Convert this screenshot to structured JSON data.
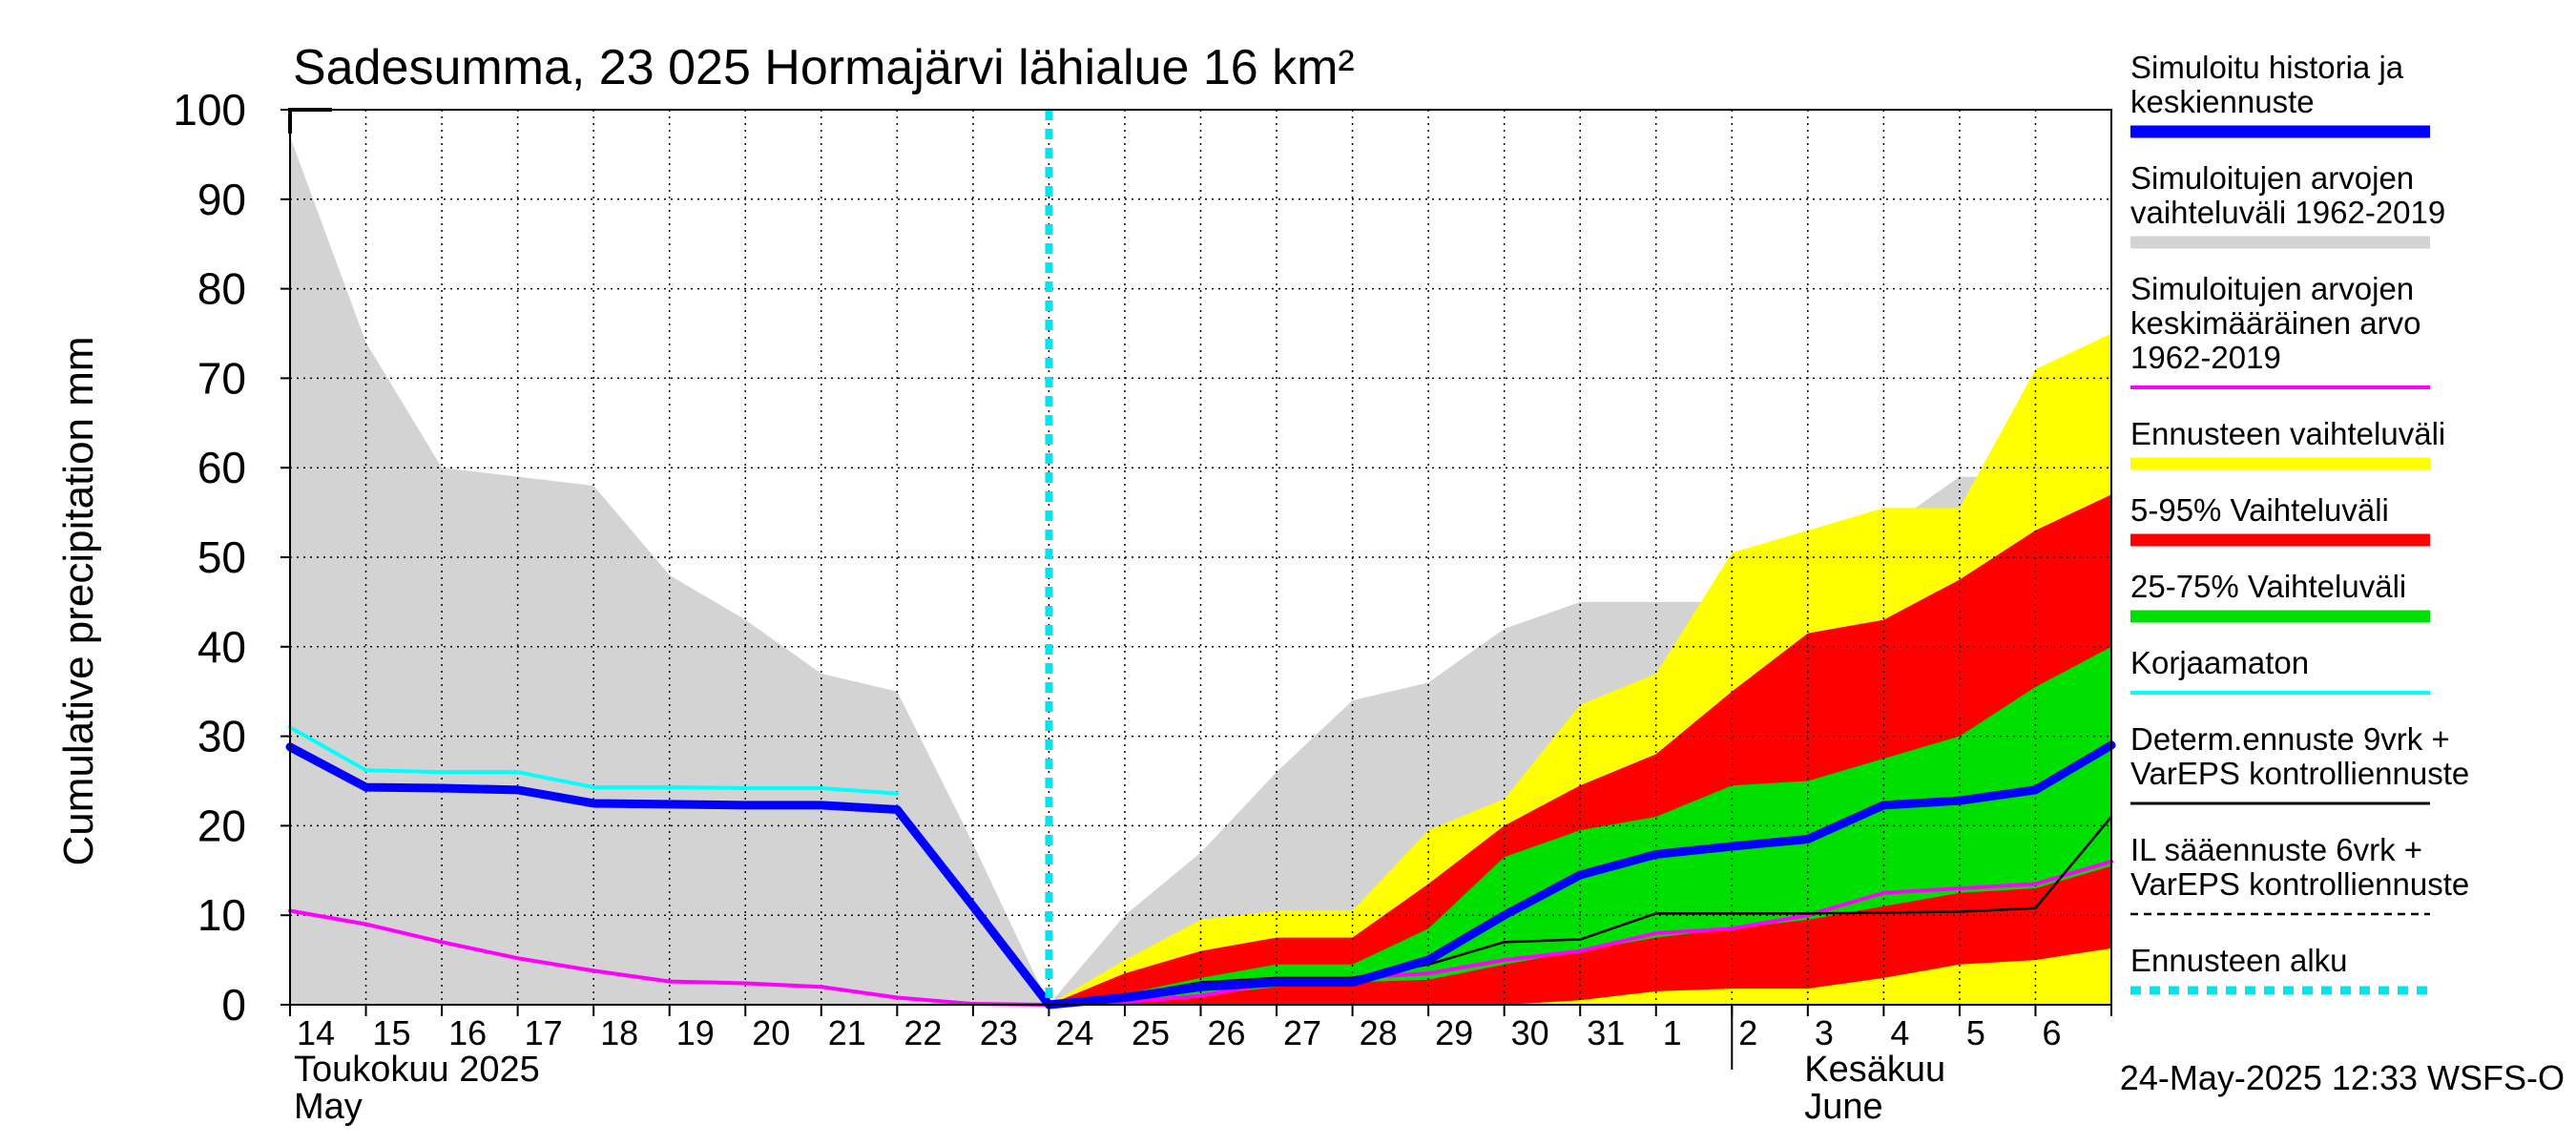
{
  "chart_data": {
    "type": "area",
    "title": "Sadesumma, 23 025 Hormajärvi lähialue 16 km²",
    "ylabel": "Cumulative precipitation   mm",
    "ylim": [
      0,
      100
    ],
    "yticks": [
      0,
      10,
      20,
      30,
      40,
      50,
      60,
      70,
      80,
      90,
      100
    ],
    "x_day_labels": [
      "14",
      "15",
      "16",
      "17",
      "18",
      "19",
      "20",
      "21",
      "22",
      "23",
      "24",
      "25",
      "26",
      "27",
      "28",
      "29",
      "30",
      "31",
      "1",
      "2",
      "3",
      "4",
      "5",
      "6"
    ],
    "month_labels": [
      {
        "fi": "Toukokuu  2025",
        "en": "May",
        "at_day": 0
      },
      {
        "fi": "Kesäkuu",
        "en": "June",
        "at_day": 19
      }
    ],
    "forecast_start_day": 10,
    "series": [
      {
        "name": "Simuloitujen arvojen vaihteluväli 1962-2019",
        "kind": "band",
        "color": "#d3d3d3",
        "upper": [
          [
            0,
            97
          ],
          [
            1,
            74
          ],
          [
            2,
            60
          ],
          [
            3,
            59
          ],
          [
            4,
            58
          ],
          [
            5,
            48
          ],
          [
            6,
            43
          ],
          [
            7,
            37
          ],
          [
            8,
            35
          ],
          [
            9,
            18
          ],
          [
            10,
            0
          ],
          [
            11,
            10
          ],
          [
            12,
            17
          ],
          [
            13,
            26
          ],
          [
            14,
            34
          ],
          [
            15,
            36
          ],
          [
            16,
            42
          ],
          [
            17,
            45
          ],
          [
            18,
            45
          ],
          [
            19,
            45
          ],
          [
            20,
            45
          ],
          [
            21,
            53
          ],
          [
            22,
            59
          ],
          [
            23,
            59
          ],
          [
            24,
            60
          ]
        ],
        "lower": [
          [
            0,
            0
          ],
          [
            24,
            0
          ]
        ]
      },
      {
        "name": "Ennusteen vaihteluväli",
        "kind": "band",
        "color": "#ffff00",
        "upper": [
          [
            10,
            0
          ],
          [
            11,
            5
          ],
          [
            12,
            9.5
          ],
          [
            13,
            10.5
          ],
          [
            14,
            10.5
          ],
          [
            15,
            19.5
          ],
          [
            16,
            23
          ],
          [
            17,
            33.5
          ],
          [
            18,
            37
          ],
          [
            19,
            50.5
          ],
          [
            20,
            53
          ],
          [
            21,
            55.5
          ],
          [
            22,
            55.5
          ],
          [
            23,
            71
          ],
          [
            24,
            75
          ]
        ],
        "lower": [
          [
            10,
            0
          ],
          [
            17,
            0
          ],
          [
            18,
            0
          ],
          [
            24,
            0
          ]
        ]
      },
      {
        "name": "5-95% Vaihteluväli",
        "kind": "band",
        "color": "#ff0000",
        "upper": [
          [
            10,
            0
          ],
          [
            11,
            3.5
          ],
          [
            12,
            6
          ],
          [
            13,
            7.5
          ],
          [
            14,
            7.5
          ],
          [
            15,
            13.5
          ],
          [
            16,
            20
          ],
          [
            17,
            24.5
          ],
          [
            18,
            28
          ],
          [
            19,
            35
          ],
          [
            20,
            41.5
          ],
          [
            21,
            43
          ],
          [
            22,
            47.5
          ],
          [
            23,
            53
          ],
          [
            24,
            57
          ]
        ],
        "lower": [
          [
            10,
            0
          ],
          [
            14,
            0
          ],
          [
            16,
            0
          ],
          [
            17,
            0.5
          ],
          [
            18,
            1.5
          ],
          [
            19,
            1.8
          ],
          [
            20,
            1.8
          ],
          [
            21,
            3
          ],
          [
            22,
            4.5
          ],
          [
            23,
            5
          ],
          [
            24,
            6.3
          ]
        ]
      },
      {
        "name": "25-75% Vaihteluväli",
        "kind": "band",
        "color": "#00e000",
        "upper": [
          [
            10,
            0
          ],
          [
            11,
            1.2
          ],
          [
            12,
            3
          ],
          [
            13,
            4.5
          ],
          [
            14,
            4.5
          ],
          [
            15,
            8.5
          ],
          [
            16,
            16.5
          ],
          [
            17,
            19.5
          ],
          [
            18,
            21
          ],
          [
            19,
            24.5
          ],
          [
            20,
            25
          ],
          [
            21,
            27.5
          ],
          [
            22,
            30
          ],
          [
            23,
            35.5
          ],
          [
            24,
            40
          ]
        ],
        "lower": [
          [
            10,
            0
          ],
          [
            11,
            0.3
          ],
          [
            12,
            1
          ],
          [
            13,
            2
          ],
          [
            14,
            2.5
          ],
          [
            15,
            2.8
          ],
          [
            16,
            4.5
          ],
          [
            17,
            6
          ],
          [
            18,
            7.5
          ],
          [
            19,
            8.5
          ],
          [
            20,
            9.5
          ],
          [
            21,
            11
          ],
          [
            22,
            12.5
          ],
          [
            23,
            13
          ],
          [
            24,
            15.5
          ]
        ]
      },
      {
        "name": "Simuloitujen arvojen keskimääräinen arvo 1962-2019",
        "kind": "line",
        "color": "#ff00ff",
        "width": 4,
        "points": [
          [
            0,
            10.5
          ],
          [
            1,
            9
          ],
          [
            2,
            7
          ],
          [
            3,
            5.2
          ],
          [
            4,
            3.8
          ],
          [
            5,
            2.6
          ],
          [
            6,
            2.4
          ],
          [
            7,
            2
          ],
          [
            8,
            0.8
          ],
          [
            9,
            0.1
          ],
          [
            10,
            0
          ],
          [
            11,
            0.3
          ],
          [
            12,
            1
          ],
          [
            13,
            2.5
          ],
          [
            14,
            3
          ],
          [
            15,
            3.5
          ],
          [
            16,
            5
          ],
          [
            17,
            6
          ],
          [
            18,
            8
          ],
          [
            19,
            8.5
          ],
          [
            20,
            10
          ],
          [
            21,
            12.5
          ],
          [
            22,
            13
          ],
          [
            23,
            13.5
          ],
          [
            24,
            16
          ]
        ]
      },
      {
        "name": "Korjaamaton",
        "kind": "line",
        "color": "#00ffff",
        "width": 4,
        "points": [
          [
            0,
            31
          ],
          [
            1,
            26.2
          ],
          [
            2,
            26
          ],
          [
            3,
            26
          ],
          [
            4,
            24.3
          ],
          [
            5,
            24.3
          ],
          [
            6,
            24.2
          ],
          [
            7,
            24.2
          ],
          [
            8,
            23.6
          ]
        ]
      },
      {
        "name": "Determ.ennuste 9vrk + VarEPS kontrolliennuste",
        "kind": "line",
        "color": "#000000",
        "width": 2.5,
        "points": [
          [
            10,
            0
          ],
          [
            11,
            1
          ],
          [
            12,
            2.5
          ],
          [
            13,
            3
          ],
          [
            14,
            3
          ],
          [
            15,
            4.5
          ],
          [
            16,
            7
          ],
          [
            17,
            7.3
          ],
          [
            18,
            10.2
          ],
          [
            19,
            10.2
          ],
          [
            20,
            10.2
          ],
          [
            21,
            10.3
          ],
          [
            22,
            10.4
          ],
          [
            23,
            10.8
          ],
          [
            24,
            21
          ]
        ]
      },
      {
        "name": "Simuloitu historia ja keskiennuste",
        "kind": "line",
        "color": "#0000ff",
        "width": 9,
        "points": [
          [
            0,
            28.8
          ],
          [
            1,
            24.3
          ],
          [
            2,
            24.2
          ],
          [
            3,
            24
          ],
          [
            4,
            22.5
          ],
          [
            5,
            22.4
          ],
          [
            6,
            22.3
          ],
          [
            7,
            22.3
          ],
          [
            8,
            21.8
          ],
          [
            9,
            11
          ],
          [
            10,
            0
          ],
          [
            11,
            0.8
          ],
          [
            12,
            2
          ],
          [
            13,
            2.5
          ],
          [
            14,
            2.5
          ],
          [
            15,
            5
          ],
          [
            16,
            10
          ],
          [
            17,
            14.5
          ],
          [
            18,
            16.8
          ],
          [
            19,
            17.7
          ],
          [
            20,
            18.5
          ],
          [
            21,
            22.3
          ],
          [
            22,
            22.8
          ],
          [
            23,
            24
          ],
          [
            24,
            29
          ]
        ]
      }
    ],
    "legend": {
      "placement": "right",
      "entries": [
        {
          "label_lines": [
            "Simuloitu historia ja",
            "keskiennuste"
          ],
          "color": "#0000ff",
          "style": "thick"
        },
        {
          "label_lines": [
            "Simuloitujen arvojen",
            "vaihteluväli 1962-2019"
          ],
          "color": "#d3d3d3",
          "style": "thick"
        },
        {
          "label_lines": [
            "Simuloitujen arvojen",
            "keskimääräinen arvo",
            "   1962-2019"
          ],
          "color": "#ff00ff",
          "style": "line"
        },
        {
          "label_lines": [
            "Ennusteen vaihteluväli"
          ],
          "color": "#ffff00",
          "style": "thick"
        },
        {
          "label_lines": [
            "5-95% Vaihteluväli"
          ],
          "color": "#ff0000",
          "style": "thick"
        },
        {
          "label_lines": [
            "25-75% Vaihteluväli"
          ],
          "color": "#00e000",
          "style": "thick"
        },
        {
          "label_lines": [
            "Korjaamaton"
          ],
          "color": "#00ffff",
          "style": "line"
        },
        {
          "label_lines": [
            "Determ.ennuste 9vrk +",
            "VarEPS kontrolliennuste"
          ],
          "color": "#000000",
          "style": "thin"
        },
        {
          "label_lines": [
            "IL sääennuste 6vrk  +",
            "  VarEPS kontrolliennuste"
          ],
          "color": "#000000",
          "style": "dashed"
        },
        {
          "label_lines": [
            "Ennusteen alku"
          ],
          "color": "#00e5ee",
          "style": "dotted"
        }
      ]
    },
    "grid": true,
    "footer": "24-May-2025 12:33 WSFS-O"
  }
}
